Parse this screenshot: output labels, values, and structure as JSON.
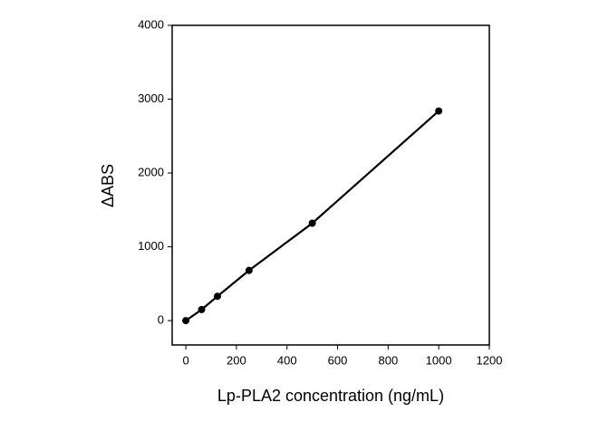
{
  "chart_data": {
    "type": "line",
    "x_label": "Lp-PLA2 concentration (ng/mL)",
    "y_label": "ΔABS",
    "x": [
      0,
      62.5,
      125,
      250,
      500,
      1000
    ],
    "series": [
      {
        "name": null,
        "color": "#000000",
        "values": [
          0,
          150,
          330,
          680,
          1320,
          2840
        ]
      }
    ],
    "xlim": [
      -54,
      1200
    ],
    "xticks": [
      0,
      200,
      400,
      600,
      800,
      1000,
      1200
    ],
    "ylim": [
      -330,
      4000
    ],
    "yticks": [
      0,
      1000,
      2000,
      3000,
      4000
    ],
    "grid": false
  }
}
